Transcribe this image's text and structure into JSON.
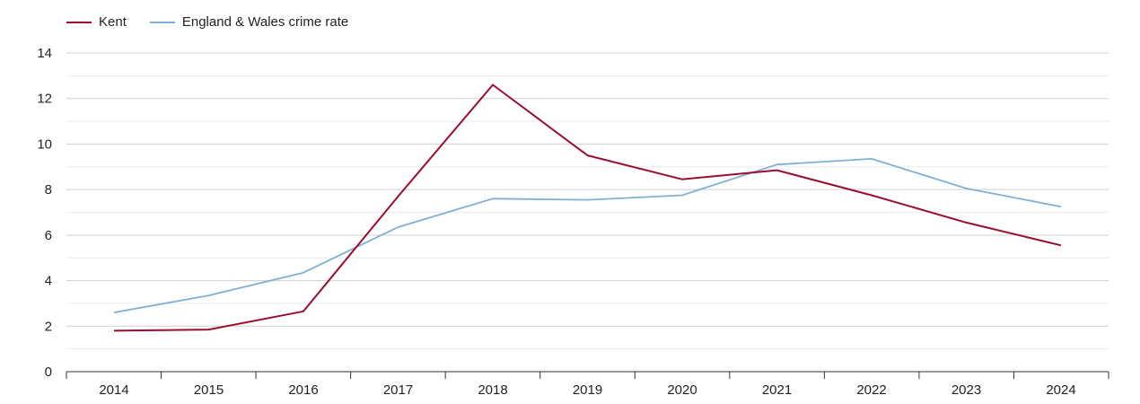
{
  "chart_data": {
    "type": "line",
    "x": [
      "2014",
      "2015",
      "2016",
      "2017",
      "2018",
      "2019",
      "2020",
      "2021",
      "2022",
      "2023",
      "2024"
    ],
    "series": [
      {
        "name": "Kent",
        "color": "#9b0d2e",
        "values": [
          1.8,
          1.85,
          2.65,
          7.7,
          12.6,
          9.5,
          8.45,
          8.85,
          7.75,
          6.55,
          5.55
        ]
      },
      {
        "name": "England & Wales crime rate",
        "color": "#7fb0d4",
        "values": [
          2.6,
          3.35,
          4.35,
          6.35,
          7.6,
          7.55,
          7.75,
          9.1,
          9.35,
          8.05,
          7.25
        ]
      }
    ],
    "ylim": [
      0,
      14
    ],
    "yticks": [
      "0",
      "2",
      "4",
      "6",
      "8",
      "10",
      "12",
      "14"
    ],
    "grid": true,
    "legend": "top-left",
    "title": "",
    "xlabel": "",
    "ylabel": ""
  }
}
